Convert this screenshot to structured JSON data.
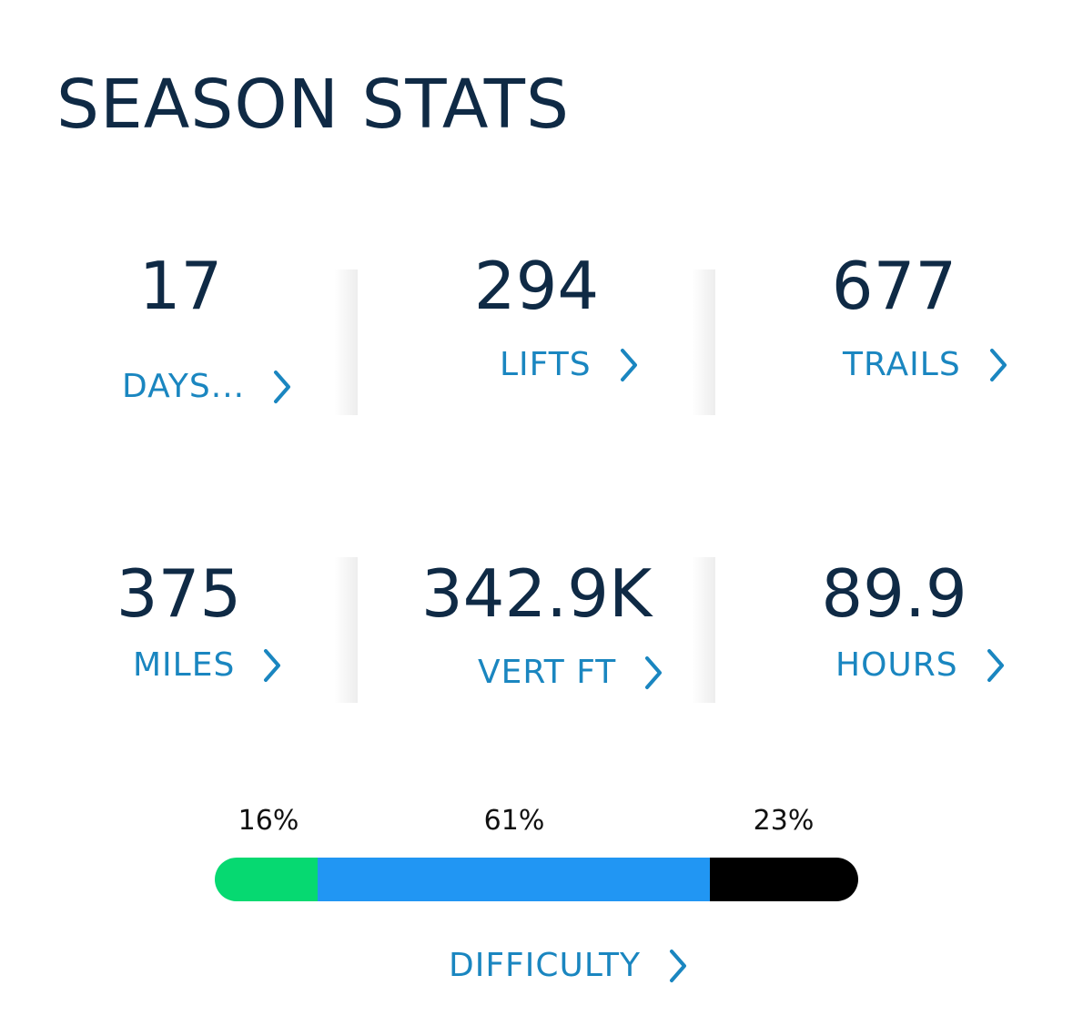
{
  "title": "SEASON STATS",
  "stats": [
    {
      "value": "17",
      "label": "DAYS..."
    },
    {
      "value": "294",
      "label": "LIFTS"
    },
    {
      "value": "677",
      "label": "TRAILS"
    },
    {
      "value": "375",
      "label": "MILES"
    },
    {
      "value": "342.9K",
      "label": "VERT FT"
    },
    {
      "value": "89.9",
      "label": "HOURS"
    }
  ],
  "difficulty": {
    "label": "DIFFICULTY",
    "segments": [
      {
        "percent_label": "16%",
        "fraction": 0.16,
        "color": "#06d971"
      },
      {
        "percent_label": "61%",
        "fraction": 0.61,
        "color": "#2196f3"
      },
      {
        "percent_label": "23%",
        "fraction": 0.23,
        "color": "#000000"
      }
    ]
  },
  "colors": {
    "title": "#0f2a45",
    "link": "#1a86c0"
  },
  "icons": {
    "chevron": "chevron-right-icon"
  }
}
